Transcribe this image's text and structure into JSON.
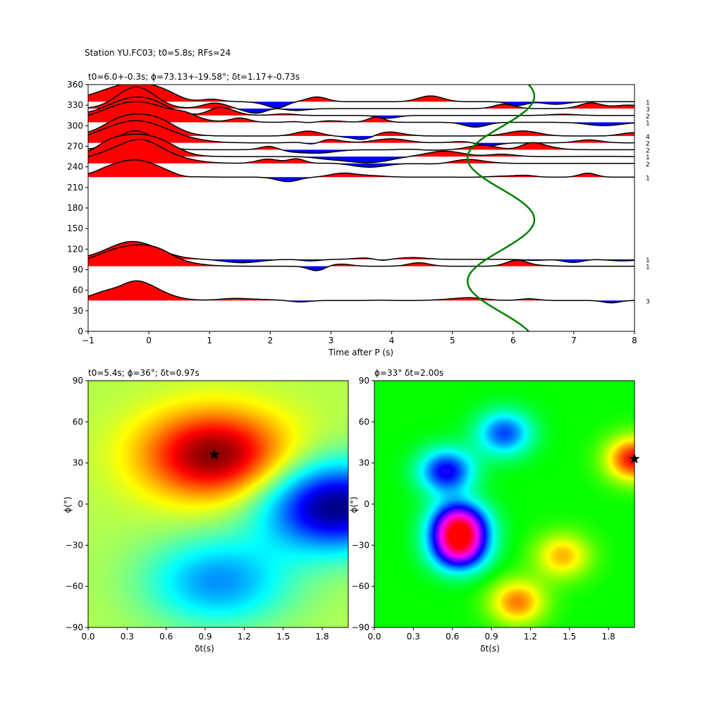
{
  "suptitle": "Station YU.FC03; t0=5.8s; RFs=24",
  "chart_data": [
    {
      "type": "line",
      "title": "t0=6.0+-0.3s; ϕ=73.13+-19.58°; δt=1.17+-0.73s",
      "xlabel": "Time after P (s)",
      "ylabel": "",
      "xlim": [
        -1,
        8
      ],
      "ylim": [
        0,
        360
      ],
      "xticks": [
        "−1",
        "0",
        "1",
        "2",
        "3",
        "4",
        "5",
        "6",
        "7",
        "8"
      ],
      "yticks": [
        "0",
        "30",
        "60",
        "90",
        "120",
        "150",
        "180",
        "210",
        "240",
        "270",
        "300",
        "330",
        "360"
      ],
      "traces": [
        {
          "baz": 335,
          "count": "1"
        },
        {
          "baz": 325,
          "count": "3"
        },
        {
          "baz": 315,
          "count": "2"
        },
        {
          "baz": 305,
          "count": "1"
        },
        {
          "baz": 285,
          "count": "4"
        },
        {
          "baz": 275,
          "count": "2"
        },
        {
          "baz": 265,
          "count": "2"
        },
        {
          "baz": 255,
          "count": "1"
        },
        {
          "baz": 245,
          "count": "2"
        },
        {
          "baz": 225,
          "count": "1"
        },
        {
          "baz": 105,
          "count": "1"
        },
        {
          "baz": 95,
          "count": "1"
        },
        {
          "baz": 45,
          "count": "3"
        }
      ],
      "predicted_curve": {
        "color": "#008000",
        "t0": 5.8,
        "amplitude": 0.55,
        "baz_of_max_delay": 163
      },
      "fill_positive": "#ff0000",
      "fill_negative": "#0000ff"
    },
    {
      "type": "heatmap",
      "title": "t0=5.4s; ϕ=36°; δt=0.97s",
      "xlabel": "δt(s)",
      "ylabel": "ϕ(°)",
      "xlim": [
        0,
        2
      ],
      "ylim": [
        -90,
        90
      ],
      "xticks": [
        "0.0",
        "0.3",
        "0.6",
        "0.9",
        "1.2",
        "1.5",
        "1.8"
      ],
      "yticks": [
        "−90",
        "−60",
        "−30",
        "0",
        "30",
        "60",
        "90"
      ],
      "colormap": "jet",
      "best": {
        "dt": 0.97,
        "phi": 36
      },
      "features": [
        {
          "dt": 0.97,
          "phi": 36,
          "value": 1.0
        },
        {
          "dt": 1.9,
          "phi": -2,
          "value": 0.0
        },
        {
          "dt": 1.0,
          "phi": -57,
          "value": 0.27
        }
      ]
    },
    {
      "type": "heatmap",
      "title": "ϕ=33° δt=2.00s",
      "xlabel": "δt(s)",
      "ylabel": "ϕ(°)",
      "xlim": [
        0,
        2
      ],
      "ylim": [
        -90,
        90
      ],
      "xticks": [
        "0.0",
        "0.3",
        "0.6",
        "0.9",
        "1.2",
        "1.5",
        "1.8"
      ],
      "yticks": [
        "−90",
        "−60",
        "−30",
        "0",
        "30",
        "60",
        "90"
      ],
      "colormap": "hsv",
      "best": {
        "dt": 2.0,
        "phi": 33
      },
      "features": [
        {
          "dt": 2.0,
          "phi": 33,
          "value": 0.0
        },
        {
          "dt": 0.65,
          "phi": -15,
          "value": 0.85
        },
        {
          "dt": 0.65,
          "phi": -33,
          "value": 0.8
        },
        {
          "dt": 0.55,
          "phi": 24,
          "value": 0.68
        },
        {
          "dt": 1.0,
          "phi": 52,
          "value": 0.62
        },
        {
          "dt": 1.1,
          "phi": -72,
          "value": 0.08
        },
        {
          "dt": 1.45,
          "phi": -38,
          "value": 0.12
        }
      ]
    }
  ]
}
